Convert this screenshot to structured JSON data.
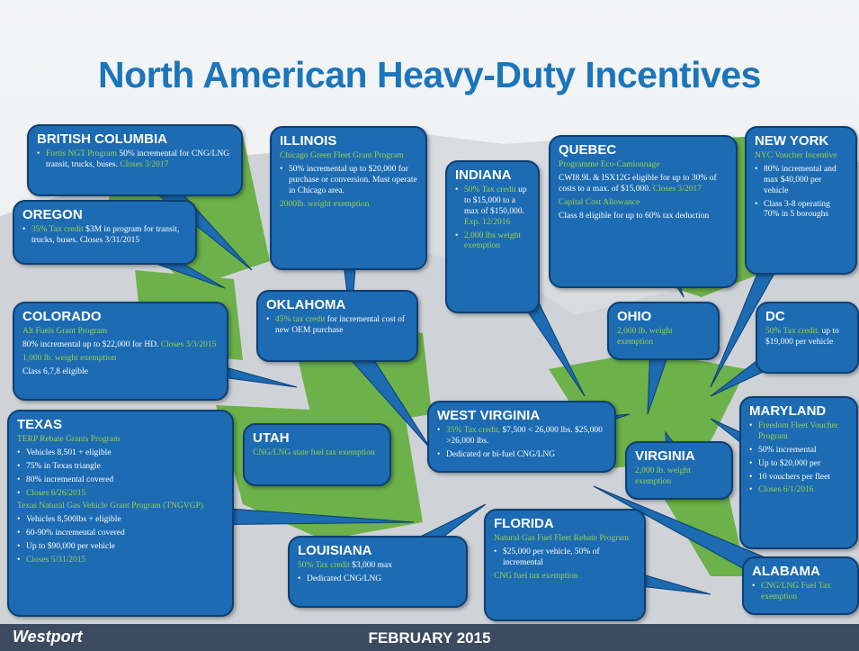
{
  "header": {
    "title": "North American Heavy-Duty Incentives"
  },
  "footer": {
    "logo": "Westport",
    "date": "FEBRUARY 2015"
  },
  "callouts": [
    {
      "title": "BRITISH COLUMBIA",
      "paragraphs": [
        {
          "bullet": true,
          "runs": [
            {
              "text": "Fortis NGT Program",
              "tone": "green"
            },
            {
              "text": " 50% incremental for CNG/LNG transit, trucks, buses. ",
              "tone": "white"
            },
            {
              "text": "Closes 3/2017",
              "tone": "green"
            }
          ]
        }
      ]
    },
    {
      "title": "OREGON",
      "paragraphs": [
        {
          "bullet": true,
          "runs": [
            {
              "text": "35% Tax credit",
              "tone": "green"
            },
            {
              "text": " $3M in program for transit, trucks, buses. Closes 3/31/2015",
              "tone": "white"
            }
          ]
        }
      ]
    },
    {
      "title": "COLORADO",
      "paragraphs": [
        {
          "bullet": false,
          "runs": [
            {
              "text": "Alt Fuels Grant Program",
              "tone": "green"
            }
          ]
        },
        {
          "bullet": false,
          "runs": [
            {
              "text": "80% incremental up to $22,000 for HD. ",
              "tone": "white"
            },
            {
              "text": "Closes 3/3/2015",
              "tone": "green"
            }
          ]
        },
        {
          "bullet": false,
          "runs": [
            {
              "text": "1,000 lb. weight exemption",
              "tone": "green"
            }
          ]
        },
        {
          "bullet": false,
          "runs": [
            {
              "text": "Class 6,7,8 eligible",
              "tone": "white"
            }
          ]
        }
      ]
    },
    {
      "title": "TEXAS",
      "paragraphs": [
        {
          "bullet": false,
          "runs": [
            {
              "text": "TERP Rebate Grants Program",
              "tone": "green"
            }
          ]
        },
        {
          "bullet": true,
          "runs": [
            {
              "text": "Vehicles 8,501 + eligible",
              "tone": "white"
            }
          ]
        },
        {
          "bullet": true,
          "runs": [
            {
              "text": "75% in Texas triangle",
              "tone": "white"
            }
          ]
        },
        {
          "bullet": true,
          "runs": [
            {
              "text": "80% incremental covered",
              "tone": "white"
            }
          ]
        },
        {
          "bullet": true,
          "runs": [
            {
              "text": "Closes 6/26/2015",
              "tone": "green"
            }
          ]
        },
        {
          "bullet": false,
          "runs": [
            {
              "text": "Texas Natural Gas Vehicle Grant Program (TNGVGP)",
              "tone": "green"
            }
          ]
        },
        {
          "bullet": true,
          "runs": [
            {
              "text": "Vehicles 8,500lbs + eligible",
              "tone": "white"
            }
          ]
        },
        {
          "bullet": true,
          "runs": [
            {
              "text": "60-90% incremental covered",
              "tone": "white"
            }
          ]
        },
        {
          "bullet": true,
          "runs": [
            {
              "text": "Up to $90,000 per vehicle",
              "tone": "white"
            }
          ]
        },
        {
          "bullet": true,
          "runs": [
            {
              "text": "Closes 5/31/2015",
              "tone": "green"
            }
          ]
        }
      ]
    },
    {
      "title": "UTAH",
      "paragraphs": [
        {
          "bullet": false,
          "runs": [
            {
              "text": "CNG/LNG state fuel tax exemption",
              "tone": "green"
            }
          ]
        }
      ]
    },
    {
      "title": "ILLINOIS",
      "paragraphs": [
        {
          "bullet": false,
          "runs": [
            {
              "text": "Chicago Green Fleet Grant Program",
              "tone": "green"
            }
          ]
        },
        {
          "bullet": true,
          "runs": [
            {
              "text": "50% incremental up to $20,000 for purchase or conversion. Must operate in Chicago area.",
              "tone": "white"
            }
          ]
        },
        {
          "bullet": false,
          "runs": [
            {
              "text": "2000lb. weight exemption",
              "tone": "green"
            }
          ]
        }
      ]
    },
    {
      "title": "OKLAHOMA",
      "paragraphs": [
        {
          "bullet": true,
          "runs": [
            {
              "text": "45% tax credit",
              "tone": "green"
            },
            {
              "text": " for incremental cost of new OEM purchase",
              "tone": "white"
            }
          ]
        }
      ]
    },
    {
      "title": "INDIANA",
      "paragraphs": [
        {
          "bullet": true,
          "runs": [
            {
              "text": "50% Tax credit",
              "tone": "green"
            },
            {
              "text": " up to $15,000 to a max of $150,000. ",
              "tone": "white"
            },
            {
              "text": "Exp. 12/2016",
              "tone": "green"
            }
          ]
        },
        {
          "bullet": true,
          "runs": [
            {
              "text": "2,000 lbs weight exemption",
              "tone": "green"
            }
          ]
        }
      ]
    },
    {
      "title": "QUEBEC",
      "paragraphs": [
        {
          "bullet": false,
          "runs": [
            {
              "text": "Programme Eco-Camionnage",
              "tone": "green"
            }
          ]
        },
        {
          "bullet": false,
          "runs": [
            {
              "text": "CWI8.9L & ISX12G eligible for up to 30% of costs to a max. of $15,000. ",
              "tone": "white"
            },
            {
              "text": "Closes 3/2017",
              "tone": "green"
            }
          ]
        },
        {
          "bullet": false,
          "runs": [
            {
              "text": "Capital Cost Allowance",
              "tone": "green"
            }
          ]
        },
        {
          "bullet": false,
          "runs": [
            {
              "text": "Class 8 eligible for up to 60% tax deduction",
              "tone": "white"
            }
          ]
        }
      ]
    },
    {
      "title": "NEW YORK",
      "paragraphs": [
        {
          "bullet": false,
          "runs": [
            {
              "text": "NYC Voucher Incentive",
              "tone": "green"
            }
          ]
        },
        {
          "bullet": true,
          "runs": [
            {
              "text": "80% incremental and max $40,000 per vehicle",
              "tone": "white"
            }
          ]
        },
        {
          "bullet": true,
          "runs": [
            {
              "text": "Class 3-8 operating 70% in 5 boroughs",
              "tone": "white"
            }
          ]
        }
      ]
    },
    {
      "title": "OHIO",
      "paragraphs": [
        {
          "bullet": false,
          "runs": [
            {
              "text": "2,000 lb. weight exemption",
              "tone": "green"
            }
          ]
        }
      ]
    },
    {
      "title": "DC",
      "paragraphs": [
        {
          "bullet": false,
          "runs": [
            {
              "text": "50% Tax credit,",
              "tone": "green"
            },
            {
              "text": " up to $19,000 per vehicle",
              "tone": "white"
            }
          ]
        }
      ]
    },
    {
      "title": "WEST VIRGINIA",
      "paragraphs": [
        {
          "bullet": true,
          "runs": [
            {
              "text": "35% Tax credit,",
              "tone": "green"
            },
            {
              "text": " $7,500 < 26,000 lbs. $25,000 >26,000 lbs.",
              "tone": "white"
            }
          ]
        },
        {
          "bullet": true,
          "runs": [
            {
              "text": "Dedicated or bi-fuel CNG/LNG",
              "tone": "white"
            }
          ]
        }
      ]
    },
    {
      "title": "VIRGINIA",
      "paragraphs": [
        {
          "bullet": false,
          "runs": [
            {
              "text": "2,000 lb. weight exemption",
              "tone": "green"
            }
          ]
        }
      ]
    },
    {
      "title": "MARYLAND",
      "paragraphs": [
        {
          "bullet": true,
          "runs": [
            {
              "text": "Freedom Fleet Voucher Program",
              "tone": "green"
            }
          ]
        },
        {
          "bullet": true,
          "runs": [
            {
              "text": "50% incremental",
              "tone": "white"
            }
          ]
        },
        {
          "bullet": true,
          "runs": [
            {
              "text": "Up to $20,000 per",
              "tone": "white"
            }
          ]
        },
        {
          "bullet": true,
          "runs": [
            {
              "text": "10 vouchers per fleet",
              "tone": "white"
            }
          ]
        },
        {
          "bullet": true,
          "runs": [
            {
              "text": "Closes 6/1/2016",
              "tone": "green"
            }
          ]
        }
      ]
    },
    {
      "title": "LOUISIANA",
      "paragraphs": [
        {
          "bullet": false,
          "runs": [
            {
              "text": "50% Tax credit",
              "tone": "green"
            },
            {
              "text": " $3,000 max",
              "tone": "white"
            }
          ]
        },
        {
          "bullet": true,
          "runs": [
            {
              "text": "Dedicated CNG/LNG",
              "tone": "white"
            }
          ]
        }
      ]
    },
    {
      "title": "FLORIDA",
      "paragraphs": [
        {
          "bullet": false,
          "runs": [
            {
              "text": "Natural Gas Fuel Fleet Rebate Program",
              "tone": "green"
            }
          ]
        },
        {
          "bullet": true,
          "runs": [
            {
              "text": "$25,000 per vehicle, 50% of incremental",
              "tone": "white"
            }
          ]
        },
        {
          "bullet": false,
          "runs": [
            {
              "text": "CNG fuel tax exemption",
              "tone": "green"
            }
          ]
        }
      ]
    },
    {
      "title": "ALABAMA",
      "paragraphs": [
        {
          "bullet": true,
          "runs": [
            {
              "text": "CNG/LNG Fuel Tax exemption",
              "tone": "green"
            }
          ]
        }
      ]
    }
  ]
}
